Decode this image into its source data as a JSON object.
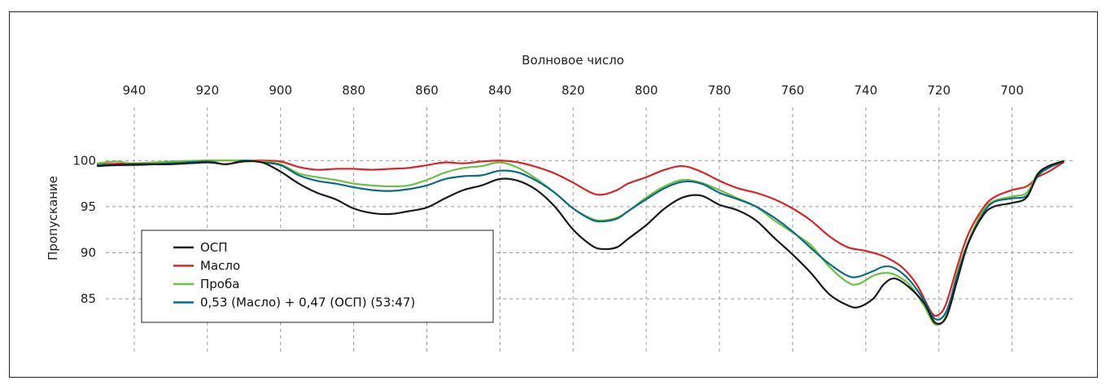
{
  "chart_data": {
    "type": "line",
    "xlabel": "Волновое число",
    "ylabel": "Пропускание",
    "xlim": [
      950,
      683
    ],
    "ylim": [
      79,
      107
    ],
    "xticks": [
      940,
      920,
      900,
      880,
      860,
      840,
      820,
      800,
      780,
      760,
      740,
      720,
      700
    ],
    "yticks": [
      100,
      95,
      90,
      85
    ],
    "x_axis_position": "top",
    "grid": true,
    "legend_position": "bottom-left",
    "series": [
      {
        "name": "ОСП",
        "color": "#1a1a1a",
        "points": [
          [
            950,
            99.4
          ],
          [
            940,
            99.6
          ],
          [
            930,
            99.6
          ],
          [
            920,
            99.8
          ],
          [
            915,
            99.6
          ],
          [
            910,
            99.9
          ],
          [
            905,
            99.8
          ],
          [
            900,
            98.8
          ],
          [
            895,
            97.5
          ],
          [
            890,
            96.5
          ],
          [
            885,
            95.8
          ],
          [
            880,
            94.8
          ],
          [
            875,
            94.3
          ],
          [
            870,
            94.2
          ],
          [
            865,
            94.5
          ],
          [
            860,
            94.9
          ],
          [
            855,
            95.9
          ],
          [
            850,
            96.8
          ],
          [
            845,
            97.3
          ],
          [
            840,
            98.0
          ],
          [
            835,
            97.8
          ],
          [
            830,
            96.8
          ],
          [
            825,
            95.0
          ],
          [
            820,
            92.5
          ],
          [
            815,
            90.8
          ],
          [
            812,
            90.4
          ],
          [
            808,
            90.6
          ],
          [
            805,
            91.5
          ],
          [
            800,
            93.0
          ],
          [
            795,
            94.8
          ],
          [
            790,
            96.0
          ],
          [
            785,
            96.2
          ],
          [
            780,
            95.2
          ],
          [
            775,
            94.6
          ],
          [
            770,
            93.5
          ],
          [
            765,
            91.6
          ],
          [
            760,
            89.8
          ],
          [
            755,
            87.8
          ],
          [
            750,
            85.5
          ],
          [
            745,
            84.3
          ],
          [
            742,
            84.1
          ],
          [
            738,
            85.0
          ],
          [
            735,
            86.6
          ],
          [
            732,
            87.2
          ],
          [
            728,
            86.2
          ],
          [
            724,
            84.5
          ],
          [
            721,
            82.4
          ],
          [
            718,
            83.0
          ],
          [
            715,
            87.0
          ],
          [
            712,
            91.0
          ],
          [
            708,
            94.0
          ],
          [
            705,
            95.0
          ],
          [
            700,
            95.4
          ],
          [
            696,
            96.0
          ],
          [
            693,
            98.5
          ],
          [
            690,
            99.4
          ],
          [
            686,
            99.9
          ]
        ]
      },
      {
        "name": "Масло",
        "color": "#d9252a",
        "points": [
          [
            950,
            99.6
          ],
          [
            940,
            99.7
          ],
          [
            930,
            99.8
          ],
          [
            920,
            100.0
          ],
          [
            910,
            100.0
          ],
          [
            905,
            100.0
          ],
          [
            900,
            99.9
          ],
          [
            895,
            99.3
          ],
          [
            890,
            99.0
          ],
          [
            885,
            99.1
          ],
          [
            880,
            99.1
          ],
          [
            875,
            99.0
          ],
          [
            870,
            99.1
          ],
          [
            865,
            99.2
          ],
          [
            860,
            99.5
          ],
          [
            855,
            99.8
          ],
          [
            850,
            99.7
          ],
          [
            845,
            99.9
          ],
          [
            840,
            100.0
          ],
          [
            835,
            99.8
          ],
          [
            830,
            99.3
          ],
          [
            825,
            98.6
          ],
          [
            820,
            97.6
          ],
          [
            815,
            96.5
          ],
          [
            812,
            96.3
          ],
          [
            808,
            96.8
          ],
          [
            805,
            97.5
          ],
          [
            800,
            98.2
          ],
          [
            795,
            99.0
          ],
          [
            790,
            99.4
          ],
          [
            785,
            98.8
          ],
          [
            780,
            97.8
          ],
          [
            775,
            97.0
          ],
          [
            770,
            96.5
          ],
          [
            765,
            95.8
          ],
          [
            760,
            94.8
          ],
          [
            755,
            93.5
          ],
          [
            750,
            91.8
          ],
          [
            745,
            90.6
          ],
          [
            740,
            90.2
          ],
          [
            735,
            89.6
          ],
          [
            730,
            88.4
          ],
          [
            726,
            86.5
          ],
          [
            722,
            83.5
          ],
          [
            720,
            83.3
          ],
          [
            718,
            84.5
          ],
          [
            715,
            88.5
          ],
          [
            712,
            92.0
          ],
          [
            708,
            94.8
          ],
          [
            705,
            96.0
          ],
          [
            700,
            96.8
          ],
          [
            696,
            97.2
          ],
          [
            693,
            98.2
          ],
          [
            690,
            98.8
          ],
          [
            686,
            99.8
          ]
        ]
      },
      {
        "name": "Проба",
        "color": "#6cbf47",
        "points": [
          [
            950,
            99.7
          ],
          [
            945,
            99.9
          ],
          [
            940,
            99.7
          ],
          [
            930,
            99.9
          ],
          [
            920,
            100.0
          ],
          [
            910,
            100.0
          ],
          [
            905,
            99.9
          ],
          [
            900,
            99.6
          ],
          [
            895,
            98.6
          ],
          [
            890,
            98.2
          ],
          [
            885,
            97.9
          ],
          [
            880,
            97.5
          ],
          [
            875,
            97.3
          ],
          [
            870,
            97.2
          ],
          [
            865,
            97.3
          ],
          [
            860,
            97.9
          ],
          [
            855,
            98.7
          ],
          [
            850,
            99.2
          ],
          [
            845,
            99.4
          ],
          [
            840,
            99.8
          ],
          [
            835,
            99.2
          ],
          [
            830,
            98.0
          ],
          [
            825,
            96.5
          ],
          [
            820,
            94.8
          ],
          [
            815,
            93.7
          ],
          [
            812,
            93.5
          ],
          [
            808,
            93.8
          ],
          [
            805,
            94.5
          ],
          [
            800,
            96.0
          ],
          [
            795,
            97.2
          ],
          [
            790,
            97.9
          ],
          [
            785,
            97.6
          ],
          [
            780,
            96.8
          ],
          [
            775,
            95.9
          ],
          [
            770,
            95.0
          ],
          [
            765,
            93.5
          ],
          [
            760,
            92.2
          ],
          [
            755,
            90.8
          ],
          [
            750,
            88.5
          ],
          [
            745,
            86.8
          ],
          [
            742,
            86.6
          ],
          [
            738,
            87.5
          ],
          [
            735,
            87.8
          ],
          [
            732,
            87.6
          ],
          [
            728,
            86.5
          ],
          [
            724,
            84.2
          ],
          [
            721,
            82.2
          ],
          [
            718,
            83.2
          ],
          [
            715,
            87.8
          ],
          [
            712,
            91.2
          ],
          [
            708,
            94.5
          ],
          [
            705,
            95.6
          ],
          [
            700,
            96.1
          ],
          [
            696,
            96.5
          ],
          [
            693,
            98.6
          ],
          [
            690,
            99.4
          ],
          [
            686,
            100.0
          ]
        ]
      },
      {
        "name": "0,53 (Масло) + 0,47 (ОСП) (53:47)",
        "color": "#0f6a85",
        "points": [
          [
            950,
            99.5
          ],
          [
            940,
            99.5
          ],
          [
            930,
            99.7
          ],
          [
            920,
            99.9
          ],
          [
            915,
            99.6
          ],
          [
            910,
            100.0
          ],
          [
            905,
            99.8
          ],
          [
            900,
            99.5
          ],
          [
            895,
            98.4
          ],
          [
            890,
            97.8
          ],
          [
            885,
            97.5
          ],
          [
            880,
            97.1
          ],
          [
            875,
            96.8
          ],
          [
            870,
            96.7
          ],
          [
            865,
            96.9
          ],
          [
            860,
            97.3
          ],
          [
            855,
            98.0
          ],
          [
            850,
            98.3
          ],
          [
            845,
            98.4
          ],
          [
            840,
            98.9
          ],
          [
            835,
            98.7
          ],
          [
            830,
            97.8
          ],
          [
            825,
            96.5
          ],
          [
            820,
            94.8
          ],
          [
            815,
            93.6
          ],
          [
            812,
            93.4
          ],
          [
            808,
            93.7
          ],
          [
            805,
            94.5
          ],
          [
            800,
            95.8
          ],
          [
            795,
            97.0
          ],
          [
            790,
            97.7
          ],
          [
            785,
            97.5
          ],
          [
            780,
            96.5
          ],
          [
            775,
            95.8
          ],
          [
            770,
            95.0
          ],
          [
            765,
            93.8
          ],
          [
            760,
            92.3
          ],
          [
            755,
            90.5
          ],
          [
            750,
            88.8
          ],
          [
            745,
            87.5
          ],
          [
            742,
            87.4
          ],
          [
            738,
            88.0
          ],
          [
            735,
            88.5
          ],
          [
            732,
            88.3
          ],
          [
            728,
            87.0
          ],
          [
            724,
            84.8
          ],
          [
            721,
            82.8
          ],
          [
            718,
            83.6
          ],
          [
            715,
            87.5
          ],
          [
            712,
            91.0
          ],
          [
            708,
            94.2
          ],
          [
            705,
            95.5
          ],
          [
            700,
            95.9
          ],
          [
            696,
            96.2
          ],
          [
            693,
            98.3
          ],
          [
            690,
            99.2
          ],
          [
            686,
            99.9
          ]
        ]
      }
    ]
  }
}
